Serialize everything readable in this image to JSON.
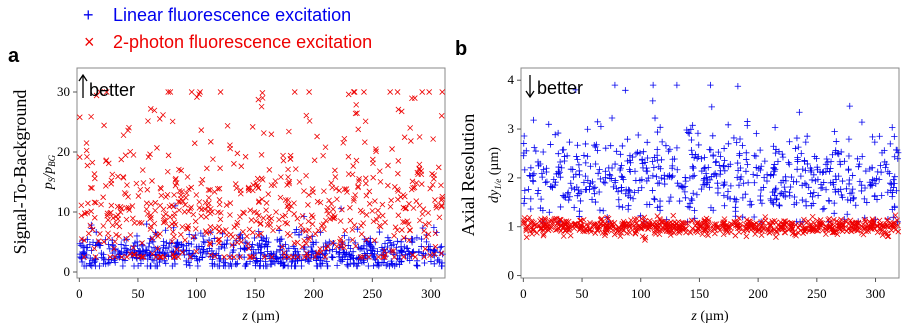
{
  "legend": {
    "items": [
      {
        "marker": "+",
        "label": "Linear fluorescence excitation",
        "color": "#0000ee"
      },
      {
        "marker": "×",
        "label": "2-photon fluorescence excitation",
        "color": "#ee0000"
      }
    ]
  },
  "chart_data": [
    {
      "panel": "a",
      "type": "scatter",
      "annotation": "better",
      "annotation_arrow": "up",
      "ylabel": "Signal-To-Background",
      "ylabel_sub": "p_S/p_BG",
      "xlabel": "z",
      "xunit": "(µm)",
      "xlim": [
        -2,
        312
      ],
      "ylim": [
        -1,
        34
      ],
      "xticks": [
        0,
        50,
        100,
        150,
        200,
        250,
        300
      ],
      "yticks": [
        0,
        10,
        20,
        30
      ],
      "grid": false,
      "series": [
        {
          "marker": "plus",
          "color": "#0000ee",
          "n": 700,
          "x_range": [
            0,
            310
          ],
          "y_mean": 3.0,
          "y_spread": 1.5,
          "y_min": 1.0,
          "y_max": 12.0
        },
        {
          "marker": "x",
          "color": "#ee0000",
          "n": 650,
          "x_range": [
            0,
            310
          ],
          "y_mean": 9.0,
          "y_spread": 4.5,
          "y_min": 2.5,
          "y_max": 30.0
        }
      ]
    },
    {
      "panel": "b",
      "type": "scatter",
      "annotation": "better",
      "annotation_arrow": "down",
      "ylabel": "Axial Resolution",
      "ylabel_sub": "dy_1/e (µm)",
      "xlabel": "z",
      "xunit": "(µm)",
      "xlim": [
        -2,
        320
      ],
      "ylim": [
        -0.05,
        4.25
      ],
      "xticks": [
        0,
        50,
        100,
        150,
        200,
        250,
        300
      ],
      "yticks": [
        0,
        1,
        2,
        3,
        4
      ],
      "grid": false,
      "series": [
        {
          "marker": "plus",
          "color": "#0000ee",
          "n": 650,
          "x_range": [
            0,
            320
          ],
          "y_mean": 2.0,
          "y_spread": 0.45,
          "y_min": 1.1,
          "y_max": 3.9
        },
        {
          "marker": "x",
          "color": "#ee0000",
          "n": 700,
          "x_range": [
            0,
            320
          ],
          "y_mean": 1.0,
          "y_spread": 0.08,
          "y_min": 0.7,
          "y_max": 1.4
        }
      ]
    }
  ]
}
